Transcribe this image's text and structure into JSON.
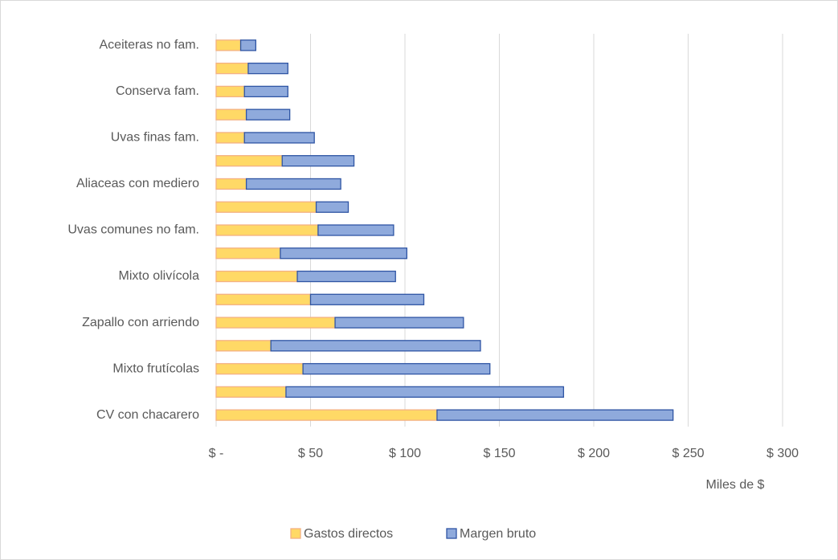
{
  "chart_data": {
    "type": "stacked-barh",
    "categories": [
      "Aceiteras  no fam.",
      null,
      "Conserva fam.",
      null,
      "Uvas finas  fam.",
      null,
      "Aliaceas con mediero",
      null,
      "Uvas comunes no fam.",
      null,
      "Mixto olivícola",
      null,
      "Zapallo  con arriendo",
      null,
      "Mixto frutícolas",
      null,
      "CV con chacarero"
    ],
    "series": [
      {
        "name": "Gastos directos",
        "color": "#ffd966",
        "edge": "#f4b183",
        "values": [
          13,
          17,
          15,
          16,
          15,
          35,
          16,
          53,
          54,
          34,
          43,
          50,
          63,
          29,
          46,
          37,
          117
        ]
      },
      {
        "name": "Margen bruto",
        "color": "#8faadc",
        "edge": "#2f55a4",
        "values": [
          8,
          21,
          23,
          23,
          37,
          38,
          50,
          17,
          40,
          67,
          52,
          60,
          68,
          111,
          99,
          147,
          125
        ]
      }
    ],
    "xlim": [
      0,
      300
    ],
    "xticks": [
      {
        "value": 0,
        "label": "$ -"
      },
      {
        "value": 50,
        "label": "$ 50"
      },
      {
        "value": 100,
        "label": "$ 100"
      },
      {
        "value": 150,
        "label": "$ 150"
      },
      {
        "value": 200,
        "label": "$ 200"
      },
      {
        "value": 250,
        "label": "$ 250"
      },
      {
        "value": 300,
        "label": "$ 300"
      }
    ],
    "xlabel": "Miles de $",
    "grid": true,
    "legend": "bottom"
  }
}
